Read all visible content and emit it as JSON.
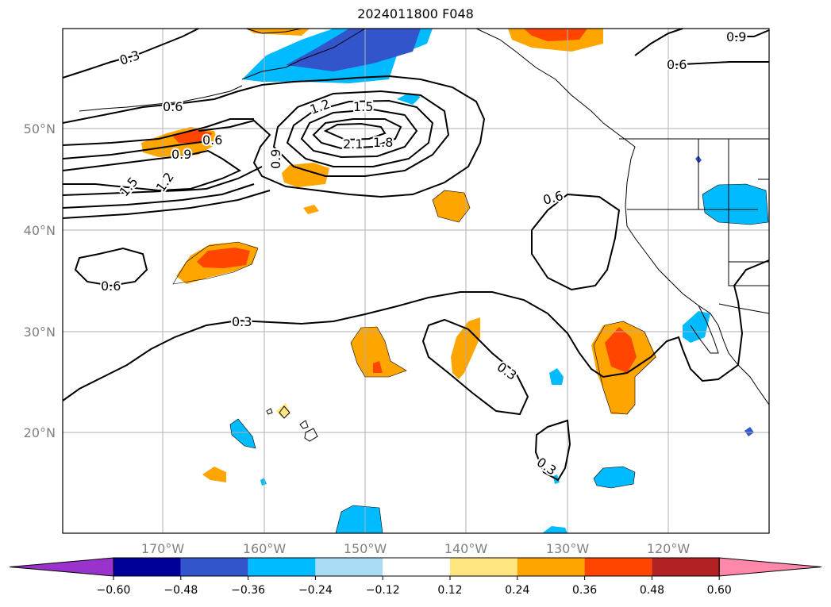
{
  "title": "2024011800 F048",
  "lon_labels": [
    "170°W",
    "160°W",
    "150°W",
    "140°W",
    "130°W",
    "120°W"
  ],
  "lat_labels": [
    "50°N",
    "40°N",
    "30°N",
    "20°N"
  ],
  "contour_labels": [
    "0.3",
    "0.6",
    "0.6",
    "1.2",
    "1.5",
    "2.1",
    "1.8",
    "0.6",
    "0.9",
    "1.5",
    "1.2",
    "0.9",
    "0.6",
    "0.6",
    "0.3",
    "0.3",
    "0.3",
    "0.9",
    "0.6"
  ],
  "colorbar": {
    "ticks": [
      "−0.60",
      "−0.48",
      "−0.36",
      "−0.24",
      "−0.12",
      "0.12",
      "0.24",
      "0.36",
      "0.48",
      "0.60"
    ],
    "colors": [
      "#9933cc",
      "#000099",
      "#3355cc",
      "#00bbff",
      "#aaddf5",
      "#ffffff",
      "#ffe680",
      "#ffa500",
      "#ff4500",
      "#b22222",
      "#ff88aa"
    ]
  },
  "colors": {
    "warm_light": "#ffe680",
    "warm": "#ffa500",
    "hot": "#ff4500",
    "cool_light": "#aaddf5",
    "cool": "#00bbff",
    "cold": "#3355cc"
  }
}
